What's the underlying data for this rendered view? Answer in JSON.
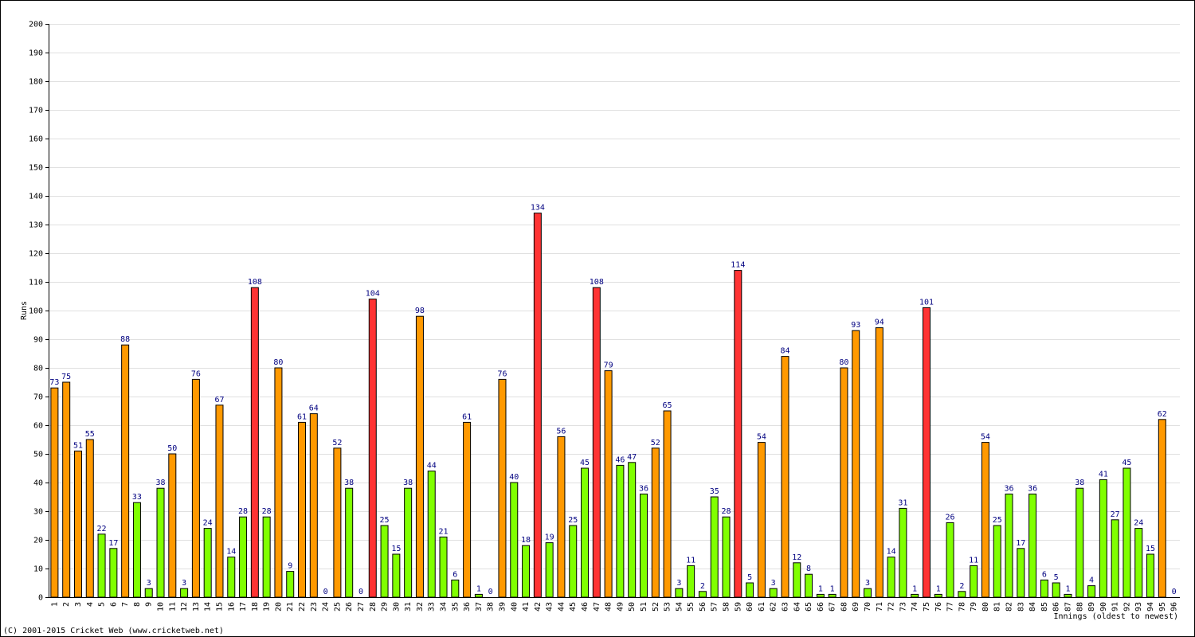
{
  "chart_data": {
    "type": "bar",
    "y_label": "Runs",
    "x_label": "Innings (oldest to newest)",
    "footer": "(C) 2001-2015 Cricket Web (www.cricketweb.net)",
    "categories": [
      "1",
      "2",
      "3",
      "4",
      "5",
      "6",
      "7",
      "8",
      "9",
      "10",
      "11",
      "12",
      "13",
      "14",
      "15",
      "16",
      "17",
      "18",
      "19",
      "20",
      "21",
      "22",
      "23",
      "24",
      "25",
      "26",
      "27",
      "28",
      "29",
      "30",
      "31",
      "32",
      "33",
      "34",
      "35",
      "36",
      "37",
      "38",
      "39",
      "40",
      "41",
      "42",
      "43",
      "44",
      "45",
      "46",
      "47",
      "48",
      "49",
      "50",
      "51",
      "52",
      "53",
      "54",
      "55",
      "56",
      "57",
      "58",
      "59",
      "60",
      "61",
      "62",
      "63",
      "64",
      "65",
      "66",
      "67",
      "68",
      "69",
      "70",
      "71",
      "72",
      "73",
      "74",
      "75",
      "76",
      "77",
      "78",
      "79",
      "80",
      "81",
      "82",
      "83",
      "84",
      "85",
      "86",
      "87",
      "88",
      "89",
      "90",
      "91",
      "92",
      "93",
      "94",
      "95",
      "96"
    ],
    "values": [
      73,
      75,
      51,
      55,
      22,
      17,
      88,
      33,
      3,
      38,
      50,
      3,
      76,
      24,
      67,
      14,
      28,
      108,
      28,
      80,
      9,
      61,
      64,
      0,
      52,
      38,
      0,
      104,
      25,
      15,
      38,
      98,
      44,
      21,
      6,
      61,
      1,
      0,
      76,
      40,
      18,
      134,
      19,
      56,
      25,
      45,
      108,
      79,
      46,
      47,
      36,
      52,
      65,
      3,
      11,
      2,
      35,
      28,
      114,
      5,
      54,
      3,
      84,
      12,
      8,
      1,
      1,
      80,
      93,
      3,
      94,
      14,
      31,
      1,
      101,
      1,
      26,
      2,
      11,
      54,
      25,
      36,
      17,
      36,
      6,
      5,
      1,
      38,
      4,
      41,
      27,
      45,
      24,
      15,
      62,
      0
    ],
    "colors": [
      "#ff9900",
      "#ff9900",
      "#ff9900",
      "#ff9900",
      "#80ff00",
      "#80ff00",
      "#ff9900",
      "#80ff00",
      "#80ff00",
      "#80ff00",
      "#ff9900",
      "#80ff00",
      "#ff9900",
      "#80ff00",
      "#ff9900",
      "#80ff00",
      "#80ff00",
      "#ff3333",
      "#80ff00",
      "#ff9900",
      "#80ff00",
      "#ff9900",
      "#ff9900",
      "#80ff00",
      "#ff9900",
      "#80ff00",
      "#80ff00",
      "#ff3333",
      "#80ff00",
      "#80ff00",
      "#80ff00",
      "#ff9900",
      "#80ff00",
      "#80ff00",
      "#80ff00",
      "#ff9900",
      "#80ff00",
      "#80ff00",
      "#ff9900",
      "#80ff00",
      "#80ff00",
      "#ff3333",
      "#80ff00",
      "#ff9900",
      "#80ff00",
      "#80ff00",
      "#ff3333",
      "#ff9900",
      "#80ff00",
      "#80ff00",
      "#80ff00",
      "#ff9900",
      "#ff9900",
      "#80ff00",
      "#80ff00",
      "#80ff00",
      "#80ff00",
      "#80ff00",
      "#ff3333",
      "#80ff00",
      "#ff9900",
      "#80ff00",
      "#ff9900",
      "#80ff00",
      "#80ff00",
      "#80ff00",
      "#80ff00",
      "#ff9900",
      "#ff9900",
      "#80ff00",
      "#ff9900",
      "#80ff00",
      "#80ff00",
      "#80ff00",
      "#ff3333",
      "#80ff00",
      "#80ff00",
      "#80ff00",
      "#80ff00",
      "#ff9900",
      "#80ff00",
      "#80ff00",
      "#80ff00",
      "#80ff00",
      "#80ff00",
      "#80ff00",
      "#80ff00",
      "#80ff00",
      "#80ff00",
      "#80ff00",
      "#80ff00",
      "#80ff00",
      "#80ff00",
      "#80ff00",
      "#ff9900",
      "#80ff00"
    ],
    "ylim": [
      0,
      200
    ],
    "yticks": [
      0,
      10,
      20,
      30,
      40,
      50,
      60,
      70,
      80,
      90,
      100,
      110,
      120,
      130,
      140,
      150,
      160,
      170,
      180,
      190,
      200
    ],
    "grid": true
  }
}
